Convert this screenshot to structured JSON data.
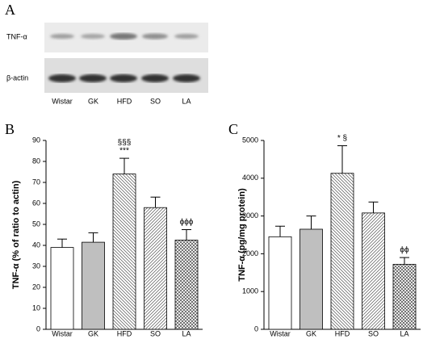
{
  "blot": {
    "panel_label": "A",
    "rows": [
      "TNF-α",
      "β-actin"
    ],
    "lanes": [
      "Wistar",
      "GK",
      "HFD",
      "SO",
      "LA"
    ]
  },
  "chart_data": [
    {
      "type": "bar",
      "panel_label": "B",
      "ylabel": "TNF-α (% of ratio to actin)",
      "categories": [
        "Wistar",
        "GK",
        "HFD",
        "SO",
        "LA"
      ],
      "values": [
        39,
        41.5,
        74,
        58,
        42.5
      ],
      "errors": [
        4,
        4.5,
        7.5,
        5,
        5
      ],
      "fills": [
        "white",
        "#bfbfbf",
        "hatch-left",
        "hatch-right",
        "crosshatch"
      ],
      "annotations": [
        {
          "category": "HFD",
          "lines": [
            "§§§",
            "***"
          ]
        },
        {
          "category": "LA",
          "lines": [
            "ϕϕϕ"
          ]
        }
      ],
      "ylim": [
        0,
        90
      ],
      "yticks": [
        0,
        10,
        20,
        30,
        40,
        50,
        60,
        70,
        80,
        90
      ]
    },
    {
      "type": "bar",
      "panel_label": "C",
      "ylabel": "TNF-α (pg/mg protein)",
      "categories": [
        "Wistar",
        "GK",
        "HFD",
        "SO",
        "LA"
      ],
      "values": [
        2450,
        2650,
        4130,
        3080,
        1720
      ],
      "errors": [
        280,
        350,
        730,
        290,
        180
      ],
      "fills": [
        "white",
        "#bfbfbf",
        "hatch-left",
        "hatch-right",
        "crosshatch"
      ],
      "annotations": [
        {
          "category": "HFD",
          "lines": [
            "* §"
          ]
        },
        {
          "category": "LA",
          "lines": [
            "ϕϕ"
          ]
        }
      ],
      "ylim": [
        0,
        5000
      ],
      "yticks": [
        0,
        1000,
        2000,
        3000,
        4000,
        5000
      ]
    }
  ]
}
